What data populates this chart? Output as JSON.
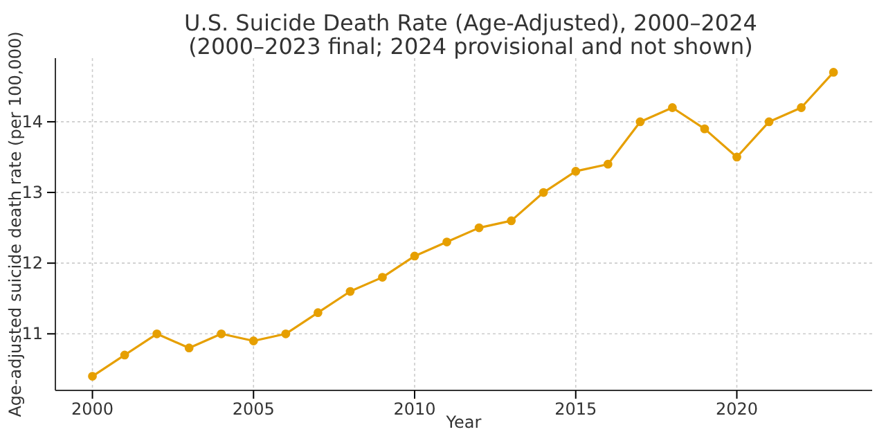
{
  "chart_data": {
    "type": "line",
    "title": "U.S. Suicide Death Rate (Age-Adjusted), 2000–2024",
    "subtitle": "(2000–2023 final; 2024 provisional and not shown)",
    "xlabel": "Year",
    "ylabel": "Age-adjusted suicide death rate (per 100,000)",
    "x": [
      2000,
      2001,
      2002,
      2003,
      2004,
      2005,
      2006,
      2007,
      2008,
      2009,
      2010,
      2011,
      2012,
      2013,
      2014,
      2015,
      2016,
      2017,
      2018,
      2019,
      2020,
      2021,
      2022,
      2023
    ],
    "series": [
      {
        "color": "#e69f00",
        "values": [
          10.4,
          10.7,
          11.0,
          10.8,
          11.0,
          10.9,
          11.0,
          11.3,
          11.6,
          11.8,
          12.1,
          12.3,
          12.5,
          12.6,
          13.0,
          13.3,
          13.4,
          14.0,
          14.2,
          13.9,
          13.5,
          14.0,
          14.2,
          14.7
        ]
      }
    ],
    "xlim": [
      1998.85,
      2024.2
    ],
    "xticks": [
      2000,
      2005,
      2010,
      2015,
      2020
    ],
    "ylim": [
      10.2,
      14.9
    ],
    "yticks": [
      11,
      12,
      13,
      14
    ],
    "grid": true,
    "marker": "circle",
    "line_style": "solid"
  }
}
